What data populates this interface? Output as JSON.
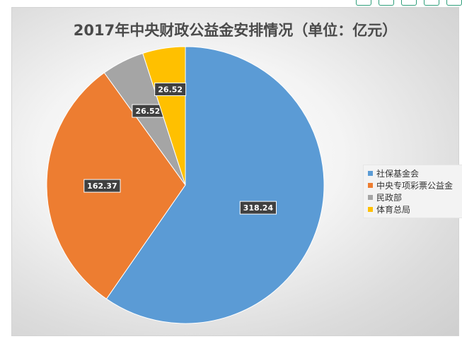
{
  "chart_data": {
    "type": "pie",
    "title": "2017年中央财政公益金安排情况（单位：亿元）",
    "legend_position": "right",
    "slices": [
      {
        "name": "社保基金会",
        "value": 318.24,
        "label": "318.24",
        "color": "#5b9bd5"
      },
      {
        "name": "中央专项彩票公益金",
        "value": 162.37,
        "label": "162.37",
        "color": "#ed7d31"
      },
      {
        "name": "民政部",
        "value": 26.52,
        "label": "26.52",
        "color": "#a5a5a5"
      },
      {
        "name": "体育总局",
        "value": 26.52,
        "label": "26.52",
        "color": "#ffc000"
      }
    ]
  }
}
